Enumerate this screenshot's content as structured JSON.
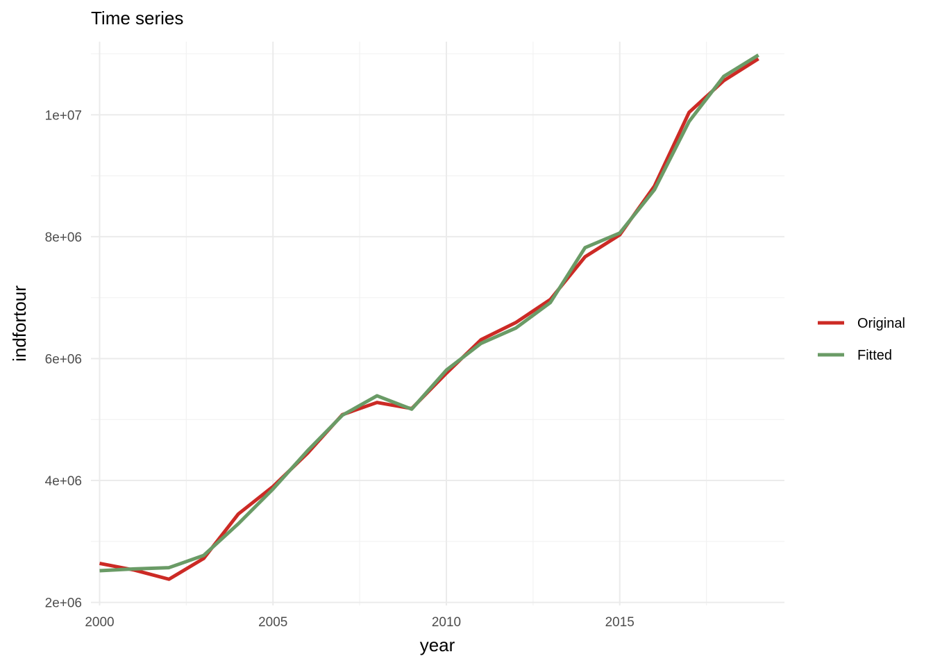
{
  "chart_data": {
    "type": "line",
    "title": "Time series",
    "xlabel": "year",
    "ylabel": "indfortour",
    "x": [
      2000,
      2001,
      2002,
      2003,
      2004,
      2005,
      2006,
      2007,
      2008,
      2009,
      2010,
      2011,
      2012,
      2013,
      2014,
      2015,
      2016,
      2017,
      2018,
      2019
    ],
    "series": [
      {
        "name": "Original",
        "color": "#cc2a25",
        "values": [
          2640000,
          2530000,
          2380000,
          2720000,
          3450000,
          3900000,
          4450000,
          5080000,
          5280000,
          5180000,
          5760000,
          6310000,
          6590000,
          6970000,
          7670000,
          8030000,
          8830000,
          10040000,
          10560000,
          10920000
        ]
      },
      {
        "name": "Fitted",
        "color": "#6a9b66",
        "values": [
          2520000,
          2550000,
          2570000,
          2770000,
          3290000,
          3860000,
          4490000,
          5070000,
          5390000,
          5170000,
          5810000,
          6250000,
          6500000,
          6920000,
          7820000,
          8060000,
          8770000,
          9890000,
          10630000,
          10980000
        ]
      }
    ],
    "xlim": [
      1999.75,
      2019.75
    ],
    "ylim": [
      1950000,
      11200000
    ],
    "x_ticks": [
      2000,
      2005,
      2010,
      2015
    ],
    "x_tick_labels": [
      "2000",
      "2005",
      "2010",
      "2015"
    ],
    "x_minor_ticks": [
      2002.5,
      2007.5,
      2012.5,
      2017.5
    ],
    "y_ticks": [
      2000000,
      4000000,
      6000000,
      8000000,
      10000000
    ],
    "y_tick_labels": [
      "2e+06",
      "4e+06",
      "6e+06",
      "8e+06",
      "1e+07"
    ],
    "y_minor_ticks": [
      3000000,
      5000000,
      7000000,
      9000000,
      11000000
    ],
    "grid": true,
    "legend": "right"
  }
}
